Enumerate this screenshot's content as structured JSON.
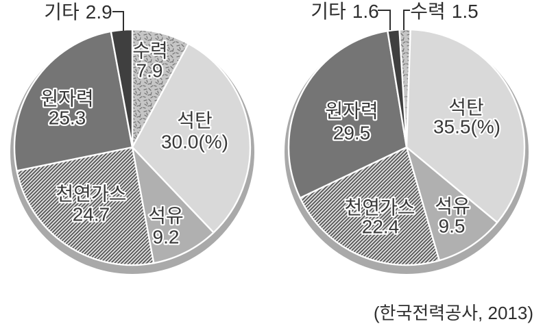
{
  "figure": {
    "source": "(한국전력공사, 2013)"
  },
  "colors": {
    "coal": "#d9d9d9",
    "oil": "#b0b0b0",
    "nuclear": "#757575",
    "other": "#3f3f3f",
    "hydro_pattern_bg": "#c6c6c6",
    "gas_hatch_line": "#4a4a4a",
    "shadow_rim": "#a9a9a9",
    "label_text": "#383838"
  },
  "chart_data": [
    {
      "type": "pie",
      "title": "",
      "unit": "%",
      "legend_position": "none",
      "slices": [
        {
          "name": "수력",
          "value": 7.9,
          "display": "7.9",
          "pattern": "speckle"
        },
        {
          "name": "석탄",
          "value": 30.0,
          "display": "30.0(%)",
          "color": "#d9d9d9"
        },
        {
          "name": "석유",
          "value": 9.2,
          "display": "9.2",
          "color": "#b0b0b0"
        },
        {
          "name": "천연가스",
          "value": 24.7,
          "display": "24.7",
          "pattern": "hatch"
        },
        {
          "name": "원자력",
          "value": 25.3,
          "display": "25.3",
          "color": "#757575"
        },
        {
          "name": "기타",
          "value": 2.9,
          "display": "2.9",
          "color": "#3f3f3f"
        }
      ]
    },
    {
      "type": "pie",
      "title": "",
      "unit": "%",
      "legend_position": "none",
      "slices": [
        {
          "name": "수력",
          "value": 1.5,
          "display": "1.5",
          "pattern": "speckle"
        },
        {
          "name": "석탄",
          "value": 35.5,
          "display": "35.5(%)",
          "color": "#d9d9d9"
        },
        {
          "name": "석유",
          "value": 9.5,
          "display": "9.5",
          "color": "#b0b0b0"
        },
        {
          "name": "천연가스",
          "value": 22.4,
          "display": "22.4",
          "pattern": "hatch"
        },
        {
          "name": "원자력",
          "value": 29.5,
          "display": "29.5",
          "color": "#757575"
        },
        {
          "name": "기타",
          "value": 1.6,
          "display": "1.6",
          "color": "#3f3f3f"
        }
      ]
    }
  ]
}
